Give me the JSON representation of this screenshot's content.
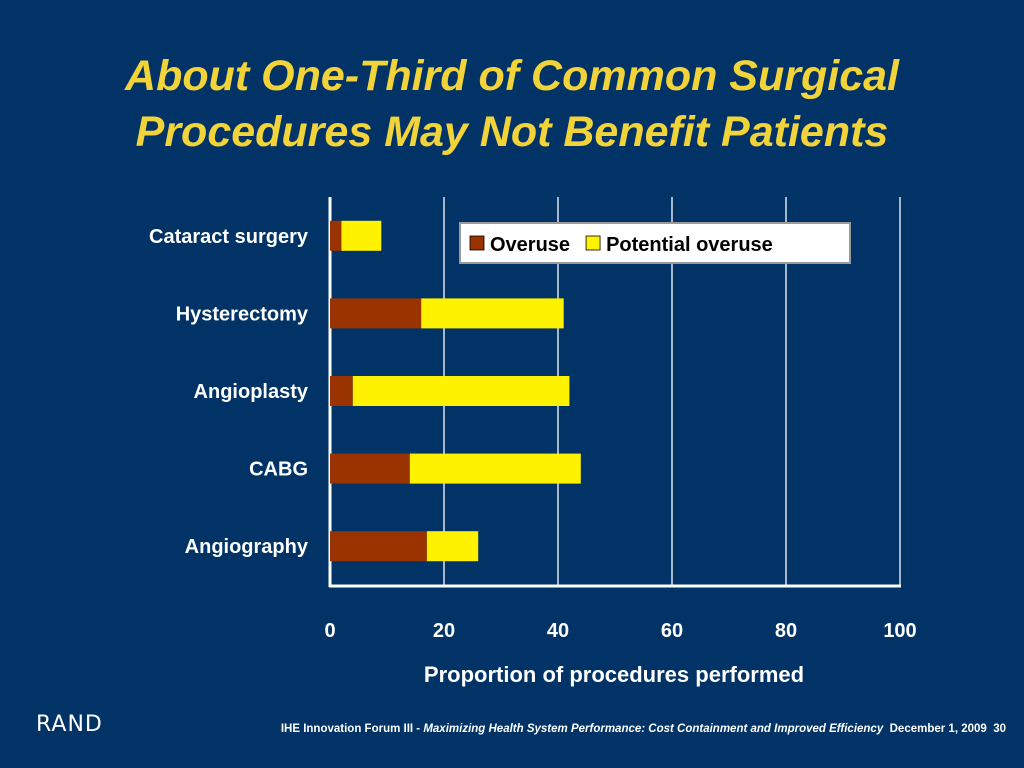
{
  "slide": {
    "title_line1": "About One-Third of Common Surgical",
    "title_line2": "Procedures May Not Benefit Patients"
  },
  "footer": {
    "logo": "RAND",
    "forum": "IHE Innovation Forum III - ",
    "subtitle": "Maximizing Health System Performance: Cost Containment and Improved Efficiency",
    "date": "December 1, 2009",
    "page": "30"
  },
  "colors": {
    "background": "#013366",
    "title": "#F2D43A",
    "overuse": "#993300",
    "potential_overuse": "#FFF200",
    "text": "#FFFFFF"
  },
  "chart_data": {
    "type": "bar",
    "orientation": "horizontal",
    "stacked": true,
    "categories": [
      "Cataract surgery",
      "Hysterectomy",
      "Angioplasty",
      "CABG",
      "Angiography"
    ],
    "series": [
      {
        "name": "Overuse",
        "values": [
          2,
          16,
          4,
          14,
          17
        ]
      },
      {
        "name": "Potential overuse",
        "values": [
          7,
          25,
          38,
          30,
          9
        ]
      }
    ],
    "xlabel": "Proportion of procedures performed",
    "ylabel": "",
    "xlim": [
      0,
      100
    ],
    "xticks": [
      0,
      20,
      40,
      60,
      80,
      100
    ],
    "grid": true,
    "legend_position": "top-right"
  }
}
